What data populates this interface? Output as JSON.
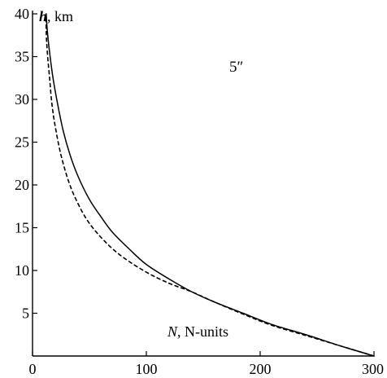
{
  "chart_data": {
    "type": "line",
    "title": "",
    "xlabel": "",
    "ylabel": "",
    "xlim": [
      0,
      300
    ],
    "ylim": [
      0,
      40
    ],
    "x_ticks": [
      "0",
      "100",
      "200",
      "300"
    ],
    "y_ticks": [
      "5",
      "10",
      "15",
      "20",
      "25",
      "30",
      "35",
      "40"
    ],
    "grid": false,
    "annotations": {
      "y_axis_label_var": "h",
      "y_axis_label_unit": ", km",
      "x_axis_label_var": "N",
      "x_axis_label_unit": ", N-units",
      "angle_note": "5″"
    },
    "series": [
      {
        "style": "solid",
        "color": "#000000",
        "points": [
          [
            300,
            0
          ],
          [
            270,
            1.2
          ],
          [
            240,
            2.5
          ],
          [
            210,
            3.7
          ],
          [
            185,
            5.0
          ],
          [
            160,
            6.3
          ],
          [
            140,
            7.5
          ],
          [
            120,
            9.0
          ],
          [
            100,
            10.7
          ],
          [
            85,
            12.5
          ],
          [
            70,
            14.5
          ],
          [
            60,
            16.3
          ],
          [
            50,
            18.3
          ],
          [
            40,
            21.0
          ],
          [
            33,
            23.5
          ],
          [
            27,
            26.3
          ],
          [
            22,
            29.5
          ],
          [
            18,
            32.5
          ],
          [
            15,
            35.5
          ],
          [
            13,
            38.0
          ],
          [
            12,
            40.0
          ]
        ]
      },
      {
        "style": "dashed",
        "color": "#000000",
        "points": [
          [
            300,
            0
          ],
          [
            270,
            1.2
          ],
          [
            240,
            2.4
          ],
          [
            210,
            3.6
          ],
          [
            185,
            4.9
          ],
          [
            160,
            6.3
          ],
          [
            140,
            7.5
          ],
          [
            120,
            8.5
          ],
          [
            100,
            9.8
          ],
          [
            80,
            11.5
          ],
          [
            65,
            13.2
          ],
          [
            50,
            15.5
          ],
          [
            40,
            17.8
          ],
          [
            32,
            20.3
          ],
          [
            25,
            23.5
          ],
          [
            20,
            26.8
          ],
          [
            17,
            29.5
          ],
          [
            15,
            32.5
          ],
          [
            13,
            35.5
          ],
          [
            12,
            38.0
          ],
          [
            12,
            40.0
          ]
        ]
      }
    ]
  }
}
